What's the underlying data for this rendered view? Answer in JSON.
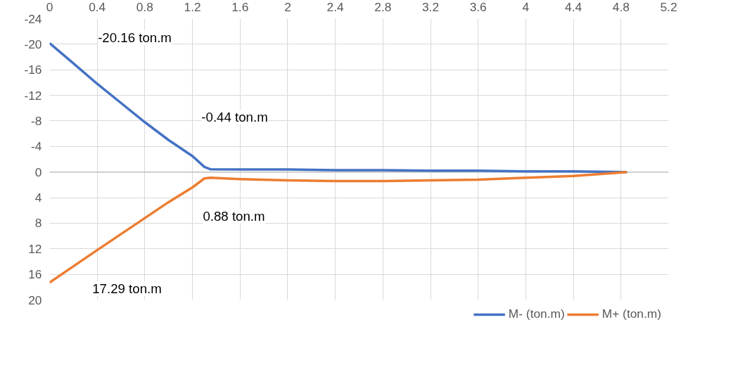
{
  "chart_data": {
    "type": "line",
    "xlim": [
      0,
      5.2
    ],
    "xticks": [
      0,
      0.4,
      0.8,
      1.2,
      1.6,
      2,
      2.4,
      2.8,
      3.2,
      3.6,
      4,
      4.4,
      4.8,
      5.2
    ],
    "ylim": [
      20,
      -24
    ],
    "yticks": [
      -24,
      -20,
      -16,
      -12,
      -8,
      -4,
      0,
      4,
      8,
      12,
      16,
      20
    ],
    "grid": true,
    "legend": "bottom",
    "line_style": "solid",
    "series": [
      {
        "name": "M- (ton.m)",
        "color": "#4472c4",
        "x": [
          0,
          0.2,
          0.4,
          0.6,
          0.8,
          1.0,
          1.2,
          1.3,
          1.35,
          1.6,
          2,
          2.4,
          2.8,
          3.2,
          3.6,
          4,
          4.4,
          4.85
        ],
        "values": [
          -20.16,
          -17,
          -13.8,
          -10.8,
          -7.8,
          -5,
          -2.5,
          -0.8,
          -0.44,
          -0.4,
          -0.4,
          -0.3,
          -0.3,
          -0.2,
          -0.2,
          -0.1,
          -0.1,
          0
        ]
      },
      {
        "name": "M+ (ton.m)",
        "color": "#ed7d31",
        "x": [
          0,
          0.4,
          0.8,
          1.0,
          1.2,
          1.3,
          1.35,
          1.6,
          2,
          2.4,
          2.8,
          3.2,
          3.6,
          4,
          4.4,
          4.85
        ],
        "values": [
          17.29,
          12.2,
          7.2,
          4.7,
          2.4,
          1.0,
          0.88,
          1.1,
          1.3,
          1.4,
          1.4,
          1.3,
          1.2,
          0.9,
          0.6,
          0
        ]
      }
    ],
    "annotations": [
      "-20.16 ton.m",
      "-0.44 ton.m",
      "0.88 ton.m",
      "17.29 ton.m"
    ]
  }
}
